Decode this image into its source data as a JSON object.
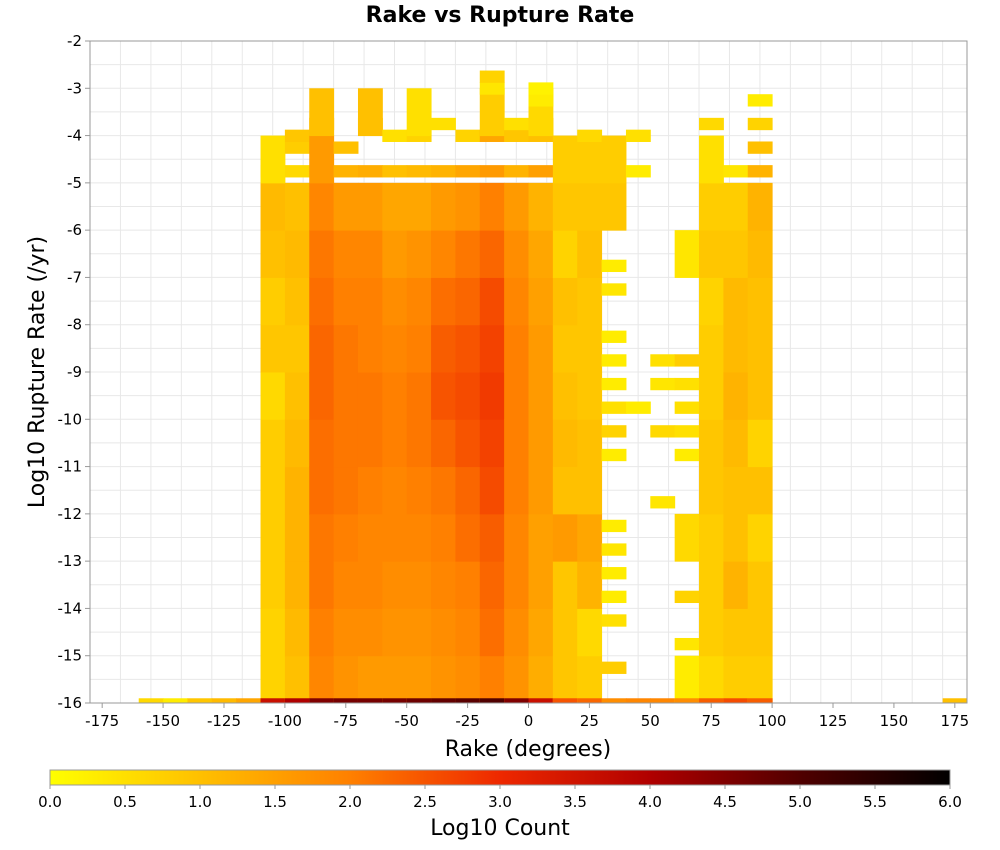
{
  "chart_data": {
    "type": "heatmap",
    "title": "Rake vs Rupture Rate",
    "xlabel": "Rake (degrees)",
    "ylabel": "Log10 Rupture Rate (/yr)",
    "xlim": [
      -180,
      180
    ],
    "ylim": [
      -16,
      -2
    ],
    "x_ticks": [
      -175,
      -150,
      -125,
      -100,
      -75,
      -50,
      -25,
      0,
      25,
      50,
      75,
      100,
      125,
      150,
      175
    ],
    "y_ticks": [
      -2,
      -3,
      -4,
      -5,
      -6,
      -7,
      -8,
      -9,
      -10,
      -11,
      -12,
      -13,
      -14,
      -15,
      -16
    ],
    "grid": true,
    "bin_width_x": 10,
    "bin_width_y": 0.25,
    "colorbar": {
      "label": "Log10 Count",
      "range": [
        0.0,
        6.0
      ],
      "ticks": [
        0.0,
        0.5,
        1.0,
        1.5,
        2.0,
        2.5,
        3.0,
        3.5,
        4.0,
        4.5,
        5.0,
        5.5,
        6.0
      ],
      "tick_labels": [
        "0.0",
        "0.5",
        "1.0",
        "1.5",
        "2.0",
        "2.5",
        "3.0",
        "3.5",
        "4.0",
        "4.5",
        "5.0",
        "5.5",
        "6.0"
      ],
      "colors": [
        "#ffff00",
        "#ffc000",
        "#ff8000",
        "#ee2800",
        "#b00000",
        "#500000",
        "#000000"
      ]
    },
    "columns": [
      {
        "x": -155,
        "bottom_value": 0.6,
        "cells": []
      },
      {
        "x": -145,
        "bottom_value": 0.3,
        "cells": []
      },
      {
        "x": -135,
        "bottom_value": 0.9,
        "cells": []
      },
      {
        "x": -125,
        "bottom_value": 1.1,
        "cells": []
      },
      {
        "x": -115,
        "bottom_value": 1.4,
        "cells": []
      },
      {
        "x": -105,
        "bottom_value": 3.6,
        "cells": [
          [
            -15.5,
            0.7
          ],
          [
            -14.5,
            0.7
          ],
          [
            -13.5,
            0.8
          ],
          [
            -12.5,
            0.8
          ],
          [
            -11.5,
            0.8
          ],
          [
            -10.5,
            0.8
          ],
          [
            -9.5,
            0.6
          ],
          [
            -8.5,
            0.9
          ],
          [
            -7.5,
            0.8
          ],
          [
            -6.5,
            1.0
          ],
          [
            -5.5,
            1.1
          ],
          [
            -4.75,
            0.8
          ],
          [
            -4.5,
            0.5
          ]
        ]
      },
      {
        "x": -95,
        "bottom_value": 4.0,
        "cells": [
          [
            -15.5,
            1.0
          ],
          [
            -14.5,
            1.1
          ],
          [
            -13.5,
            1.2
          ],
          [
            -12.5,
            1.2
          ],
          [
            -11.5,
            1.2
          ],
          [
            -10.5,
            1.1
          ],
          [
            -9.5,
            1.0
          ],
          [
            -8.5,
            0.9
          ],
          [
            -7.5,
            1.0
          ],
          [
            -6.5,
            1.1
          ],
          [
            -5.5,
            1.0
          ],
          [
            -4.75,
            0.6
          ],
          [
            -4.25,
            0.8
          ],
          [
            -4.0,
            0.9
          ]
        ]
      },
      {
        "x": -85,
        "bottom_value": 4.5,
        "cells": [
          [
            -15.5,
            1.9
          ],
          [
            -14.5,
            2.0
          ],
          [
            -13.5,
            2.1
          ],
          [
            -12.5,
            2.1
          ],
          [
            -11.5,
            2.2
          ],
          [
            -10.5,
            2.2
          ],
          [
            -9.5,
            2.3
          ],
          [
            -8.5,
            2.3
          ],
          [
            -7.5,
            2.2
          ],
          [
            -6.5,
            2.1
          ],
          [
            -5.5,
            1.9
          ],
          [
            -4.5,
            1.6
          ],
          [
            -3.75,
            1.3
          ],
          [
            -3.5,
            1.0
          ]
        ]
      },
      {
        "x": -75,
        "bottom_value": 4.6,
        "cells": [
          [
            -15.5,
            1.7
          ],
          [
            -14.5,
            1.8
          ],
          [
            -13.5,
            1.9
          ],
          [
            -12.5,
            2.0
          ],
          [
            -11.5,
            2.1
          ],
          [
            -10.5,
            2.1
          ],
          [
            -9.5,
            2.1
          ],
          [
            -8.5,
            2.1
          ],
          [
            -7.5,
            2.0
          ],
          [
            -6.5,
            1.9
          ],
          [
            -5.5,
            1.6
          ],
          [
            -4.75,
            1.2
          ],
          [
            -4.25,
            1.0
          ]
        ]
      },
      {
        "x": -65,
        "bottom_value": 4.6,
        "cells": [
          [
            -15.5,
            1.6
          ],
          [
            -14.5,
            1.8
          ],
          [
            -13.5,
            1.9
          ],
          [
            -12.5,
            1.9
          ],
          [
            -11.5,
            2.0
          ],
          [
            -10.5,
            2.1
          ],
          [
            -9.5,
            2.1
          ],
          [
            -8.5,
            2.0
          ],
          [
            -7.5,
            2.0
          ],
          [
            -6.5,
            1.9
          ],
          [
            -5.5,
            1.6
          ],
          [
            -4.75,
            1.3
          ],
          [
            -3.75,
            0.9
          ],
          [
            -3.5,
            1.0
          ]
        ]
      },
      {
        "x": -55,
        "bottom_value": 4.6,
        "cells": [
          [
            -15.5,
            1.6
          ],
          [
            -14.5,
            1.7
          ],
          [
            -13.5,
            1.8
          ],
          [
            -12.5,
            1.9
          ],
          [
            -11.5,
            1.9
          ],
          [
            -10.5,
            2.0
          ],
          [
            -9.5,
            2.0
          ],
          [
            -8.5,
            1.9
          ],
          [
            -7.5,
            1.8
          ],
          [
            -6.5,
            1.6
          ],
          [
            -5.5,
            1.4
          ],
          [
            -4.75,
            1.0
          ],
          [
            -4.0,
            0.5
          ]
        ]
      },
      {
        "x": -45,
        "bottom_value": 4.7,
        "cells": [
          [
            -15.5,
            1.6
          ],
          [
            -14.5,
            1.7
          ],
          [
            -13.5,
            1.8
          ],
          [
            -12.5,
            1.9
          ],
          [
            -11.5,
            2.0
          ],
          [
            -10.5,
            2.1
          ],
          [
            -9.5,
            2.1
          ],
          [
            -8.5,
            2.0
          ],
          [
            -7.5,
            1.9
          ],
          [
            -6.5,
            1.7
          ],
          [
            -5.5,
            1.4
          ],
          [
            -4.75,
            1.1
          ],
          [
            -4.0,
            0.7
          ],
          [
            -3.5,
            0.5
          ]
        ]
      },
      {
        "x": -35,
        "bottom_value": 4.8,
        "cells": [
          [
            -15.5,
            1.7
          ],
          [
            -14.5,
            1.8
          ],
          [
            -13.5,
            1.9
          ],
          [
            -12.5,
            2.0
          ],
          [
            -11.5,
            2.1
          ],
          [
            -10.5,
            2.3
          ],
          [
            -9.5,
            2.5
          ],
          [
            -8.5,
            2.4
          ],
          [
            -7.5,
            2.2
          ],
          [
            -6.5,
            1.9
          ],
          [
            -5.5,
            1.6
          ],
          [
            -4.75,
            1.2
          ],
          [
            -3.75,
            0.5
          ]
        ]
      },
      {
        "x": -25,
        "bottom_value": 4.9,
        "cells": [
          [
            -15.5,
            1.8
          ],
          [
            -14.5,
            1.9
          ],
          [
            -13.5,
            2.0
          ],
          [
            -12.5,
            2.2
          ],
          [
            -11.5,
            2.3
          ],
          [
            -10.5,
            2.5
          ],
          [
            -9.5,
            2.6
          ],
          [
            -8.5,
            2.5
          ],
          [
            -7.5,
            2.3
          ],
          [
            -6.5,
            2.1
          ],
          [
            -5.5,
            1.7
          ],
          [
            -4.75,
            1.4
          ],
          [
            -4.0,
            0.7
          ]
        ]
      },
      {
        "x": -15,
        "bottom_value": 5.0,
        "cells": [
          [
            -15.5,
            2.0
          ],
          [
            -14.5,
            2.2
          ],
          [
            -13.5,
            2.3
          ],
          [
            -12.5,
            2.4
          ],
          [
            -11.5,
            2.6
          ],
          [
            -10.5,
            2.7
          ],
          [
            -9.5,
            2.8
          ],
          [
            -8.5,
            2.7
          ],
          [
            -7.5,
            2.6
          ],
          [
            -6.5,
            2.3
          ],
          [
            -5.5,
            2.0
          ],
          [
            -4.75,
            1.6
          ],
          [
            -4.0,
            1.4
          ],
          [
            -3.5,
            0.8
          ],
          [
            -3.0,
            0.4
          ],
          [
            -2.75,
            0.7
          ]
        ]
      },
      {
        "x": -5,
        "bottom_value": 4.5,
        "cells": [
          [
            -15.5,
            1.7
          ],
          [
            -14.5,
            1.8
          ],
          [
            -13.5,
            1.9
          ],
          [
            -12.5,
            1.9
          ],
          [
            -11.5,
            2.0
          ],
          [
            -10.5,
            2.0
          ],
          [
            -9.5,
            2.0
          ],
          [
            -8.5,
            2.0
          ],
          [
            -7.5,
            1.9
          ],
          [
            -6.5,
            1.8
          ],
          [
            -5.5,
            1.6
          ],
          [
            -4.75,
            1.2
          ],
          [
            -4.0,
            0.9
          ],
          [
            -3.75,
            0.5
          ]
        ]
      },
      {
        "x": 5,
        "bottom_value": 3.6,
        "cells": [
          [
            -15.5,
            1.3
          ],
          [
            -14.5,
            1.4
          ],
          [
            -13.5,
            1.5
          ],
          [
            -12.5,
            1.5
          ],
          [
            -11.5,
            1.6
          ],
          [
            -10.5,
            1.6
          ],
          [
            -9.5,
            1.6
          ],
          [
            -8.5,
            1.6
          ],
          [
            -7.5,
            1.5
          ],
          [
            -6.5,
            1.4
          ],
          [
            -5.5,
            1.2
          ],
          [
            -4.75,
            1.5
          ],
          [
            -4.0,
            1.0
          ],
          [
            -3.75,
            1.1
          ],
          [
            -3.5,
            0.6
          ],
          [
            -3.25,
            0.3
          ],
          [
            -3.0,
            0.2
          ]
        ]
      },
      {
        "x": 15,
        "bottom_value": 2.5,
        "cells": [
          [
            -15.5,
            0.9
          ],
          [
            -14.5,
            0.9
          ],
          [
            -13.5,
            0.9
          ],
          [
            -12.5,
            1.6
          ],
          [
            -11.5,
            1.0
          ],
          [
            -10.5,
            1.1
          ],
          [
            -9.5,
            1.0
          ],
          [
            -8.5,
            0.9
          ],
          [
            -7.5,
            1.0
          ],
          [
            -6.5,
            0.7
          ],
          [
            -5.5,
            0.9
          ],
          [
            -4.5,
            0.8
          ]
        ]
      },
      {
        "x": 25,
        "bottom_value": 2.3,
        "cells": [
          [
            -15.5,
            0.8
          ],
          [
            -14.5,
            0.6
          ],
          [
            -13.5,
            1.2
          ],
          [
            -12.5,
            1.4
          ],
          [
            -11.5,
            1.0
          ],
          [
            -10.5,
            1.0
          ],
          [
            -9.5,
            0.9
          ],
          [
            -8.5,
            0.9
          ],
          [
            -7.5,
            0.9
          ],
          [
            -6.5,
            1.0
          ],
          [
            -5.5,
            0.9
          ],
          [
            -4.5,
            0.8
          ],
          [
            -4.0,
            0.6
          ]
        ]
      },
      {
        "x": 35,
        "bottom_value": 1.8,
        "cells": [
          [
            -15.25,
            0.8
          ],
          [
            -14.25,
            0.5
          ],
          [
            -13.75,
            0.3
          ],
          [
            -13.25,
            0.3
          ],
          [
            -12.75,
            0.4
          ],
          [
            -12.25,
            0.3
          ],
          [
            -10.75,
            0.3
          ],
          [
            -10.25,
            0.7
          ],
          [
            -9.75,
            0.5
          ],
          [
            -9.25,
            0.3
          ],
          [
            -8.75,
            0.3
          ],
          [
            -8.25,
            0.3
          ],
          [
            -7.25,
            0.4
          ],
          [
            -6.75,
            0.3
          ],
          [
            -5.5,
            0.9
          ],
          [
            -4.5,
            0.8
          ]
        ]
      },
      {
        "x": 45,
        "bottom_value": 1.9,
        "cells": [
          [
            -9.75,
            0.3
          ],
          [
            -4.75,
            0.3
          ],
          [
            -4.0,
            0.5
          ]
        ]
      },
      {
        "x": 55,
        "bottom_value": 1.9,
        "cells": [
          [
            -11.75,
            0.4
          ],
          [
            -10.25,
            0.6
          ],
          [
            -8.75,
            0.5
          ],
          [
            -9.25,
            0.4
          ]
        ]
      },
      {
        "x": 65,
        "bottom_value": 1.8,
        "cells": [
          [
            -15.5,
            0.3
          ],
          [
            -14.75,
            0.4
          ],
          [
            -13.75,
            0.7
          ],
          [
            -12.5,
            0.6
          ],
          [
            -10.75,
            0.3
          ],
          [
            -10.25,
            0.5
          ],
          [
            -9.75,
            0.5
          ],
          [
            -9.25,
            0.5
          ],
          [
            -8.75,
            0.8
          ],
          [
            -6.5,
            0.4
          ]
        ]
      },
      {
        "x": 75,
        "bottom_value": 2.4,
        "cells": [
          [
            -15.5,
            0.6
          ],
          [
            -14.5,
            0.8
          ],
          [
            -13.5,
            0.8
          ],
          [
            -12.5,
            0.8
          ],
          [
            -11.5,
            0.9
          ],
          [
            -10.5,
            0.9
          ],
          [
            -9.5,
            0.8
          ],
          [
            -8.5,
            0.8
          ],
          [
            -7.5,
            0.7
          ],
          [
            -6.5,
            0.9
          ],
          [
            -5.5,
            0.8
          ],
          [
            -4.5,
            0.5
          ],
          [
            -3.75,
            0.6
          ]
        ]
      },
      {
        "x": 85,
        "bottom_value": 2.6,
        "cells": [
          [
            -15.5,
            0.8
          ],
          [
            -14.5,
            0.9
          ],
          [
            -13.5,
            1.2
          ],
          [
            -12.5,
            1.0
          ],
          [
            -11.5,
            1.0
          ],
          [
            -10.5,
            1.1
          ],
          [
            -9.5,
            1.2
          ],
          [
            -8.5,
            1.1
          ],
          [
            -7.5,
            1.1
          ],
          [
            -6.5,
            0.9
          ],
          [
            -5.5,
            0.8
          ],
          [
            -4.75,
            0.4
          ]
        ]
      },
      {
        "x": 95,
        "bottom_value": 2.4,
        "cells": [
          [
            -15.5,
            0.8
          ],
          [
            -14.5,
            0.9
          ],
          [
            -13.5,
            0.9
          ],
          [
            -12.5,
            0.7
          ],
          [
            -11.5,
            1.0
          ],
          [
            -10.5,
            0.7
          ],
          [
            -9.5,
            1.0
          ],
          [
            -8.5,
            1.0
          ],
          [
            -7.5,
            1.0
          ],
          [
            -6.5,
            1.1
          ],
          [
            -5.5,
            1.2
          ],
          [
            -4.75,
            1.2
          ],
          [
            -4.25,
            1.0
          ],
          [
            -3.75,
            0.7
          ],
          [
            -3.25,
            0.3
          ]
        ]
      },
      {
        "x": 175,
        "bottom_value": 1.0,
        "cells": []
      }
    ]
  }
}
